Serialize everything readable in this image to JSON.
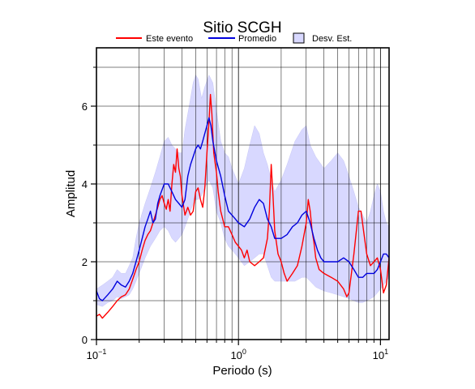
{
  "colors": {
    "event": "#ff0000",
    "mean": "#0000dd",
    "band": "#d8d8ff",
    "band_edge": "#c7c7f5",
    "grid": "#000000"
  },
  "chart_data": {
    "type": "line",
    "title": "Sitio SCGH",
    "xlabel": "Periodo (s)",
    "ylabel": "Amplitud",
    "xscale": "log",
    "xlim": [
      0.1,
      11.5
    ],
    "ylim": [
      0,
      7.5
    ],
    "grid": true,
    "legend_position": "top",
    "x_ticks": [
      {
        "value": 0.1,
        "base": "10",
        "exp": "−1"
      },
      {
        "value": 1,
        "base": "10",
        "exp": "0"
      },
      {
        "value": 10,
        "base": "10",
        "exp": "1"
      }
    ],
    "y_ticks": [
      0,
      2,
      4,
      6
    ],
    "legend": [
      {
        "label": "Este evento",
        "kind": "line",
        "color_key": "event"
      },
      {
        "label": "Promedio",
        "kind": "line",
        "color_key": "mean"
      },
      {
        "label": "Desv. Est.",
        "kind": "patch",
        "color_key": "band"
      }
    ],
    "series": [
      {
        "name": "Este evento",
        "color_key": "event",
        "points": [
          [
            0.1,
            0.6
          ],
          [
            0.105,
            0.65
          ],
          [
            0.11,
            0.55
          ],
          [
            0.12,
            0.7
          ],
          [
            0.13,
            0.85
          ],
          [
            0.14,
            1.0
          ],
          [
            0.15,
            1.1
          ],
          [
            0.16,
            1.15
          ],
          [
            0.17,
            1.3
          ],
          [
            0.18,
            1.55
          ],
          [
            0.19,
            1.8
          ],
          [
            0.2,
            2.0
          ],
          [
            0.21,
            2.3
          ],
          [
            0.22,
            2.55
          ],
          [
            0.23,
            2.7
          ],
          [
            0.24,
            2.8
          ],
          [
            0.25,
            3.0
          ],
          [
            0.26,
            3.2
          ],
          [
            0.27,
            3.4
          ],
          [
            0.28,
            3.6
          ],
          [
            0.29,
            3.7
          ],
          [
            0.3,
            3.5
          ],
          [
            0.31,
            3.35
          ],
          [
            0.32,
            3.6
          ],
          [
            0.33,
            3.3
          ],
          [
            0.34,
            4.0
          ],
          [
            0.35,
            4.5
          ],
          [
            0.36,
            4.3
          ],
          [
            0.37,
            4.9
          ],
          [
            0.38,
            4.4
          ],
          [
            0.39,
            4.2
          ],
          [
            0.4,
            3.7
          ],
          [
            0.42,
            3.2
          ],
          [
            0.44,
            3.4
          ],
          [
            0.46,
            3.2
          ],
          [
            0.48,
            3.3
          ],
          [
            0.5,
            3.8
          ],
          [
            0.52,
            3.9
          ],
          [
            0.54,
            3.6
          ],
          [
            0.56,
            3.4
          ],
          [
            0.58,
            3.9
          ],
          [
            0.6,
            4.8
          ],
          [
            0.62,
            5.6
          ],
          [
            0.635,
            6.3
          ],
          [
            0.65,
            5.8
          ],
          [
            0.67,
            4.8
          ],
          [
            0.7,
            4.3
          ],
          [
            0.72,
            3.8
          ],
          [
            0.75,
            3.3
          ],
          [
            0.8,
            2.9
          ],
          [
            0.85,
            2.9
          ],
          [
            0.9,
            2.7
          ],
          [
            0.95,
            2.5
          ],
          [
            1.0,
            2.4
          ],
          [
            1.05,
            2.3
          ],
          [
            1.1,
            2.1
          ],
          [
            1.15,
            2.3
          ],
          [
            1.2,
            2.0
          ],
          [
            1.3,
            1.9
          ],
          [
            1.4,
            2.0
          ],
          [
            1.5,
            2.1
          ],
          [
            1.6,
            2.6
          ],
          [
            1.65,
            3.3
          ],
          [
            1.7,
            4.5
          ],
          [
            1.75,
            3.7
          ],
          [
            1.8,
            2.8
          ],
          [
            1.9,
            2.2
          ],
          [
            2.0,
            2.0
          ],
          [
            2.1,
            1.7
          ],
          [
            2.2,
            1.5
          ],
          [
            2.4,
            1.7
          ],
          [
            2.6,
            1.9
          ],
          [
            2.8,
            2.4
          ],
          [
            3.0,
            3.0
          ],
          [
            3.1,
            3.6
          ],
          [
            3.2,
            3.3
          ],
          [
            3.3,
            2.8
          ],
          [
            3.4,
            2.5
          ],
          [
            3.5,
            2.1
          ],
          [
            3.7,
            1.8
          ],
          [
            4.0,
            1.7
          ],
          [
            4.5,
            1.6
          ],
          [
            5.0,
            1.5
          ],
          [
            5.5,
            1.3
          ],
          [
            5.8,
            1.1
          ],
          [
            6.0,
            1.2
          ],
          [
            6.5,
            2.2
          ],
          [
            7.0,
            3.3
          ],
          [
            7.3,
            3.3
          ],
          [
            7.6,
            2.8
          ],
          [
            8.0,
            2.2
          ],
          [
            8.5,
            1.9
          ],
          [
            9.0,
            2.0
          ],
          [
            9.5,
            2.1
          ],
          [
            10.0,
            1.8
          ],
          [
            10.5,
            1.2
          ],
          [
            11.0,
            1.4
          ],
          [
            11.5,
            2.1
          ]
        ]
      },
      {
        "name": "Promedio",
        "color_key": "mean",
        "points": [
          [
            0.1,
            1.25
          ],
          [
            0.105,
            1.05
          ],
          [
            0.11,
            1.0
          ],
          [
            0.12,
            1.15
          ],
          [
            0.13,
            1.3
          ],
          [
            0.14,
            1.5
          ],
          [
            0.15,
            1.4
          ],
          [
            0.16,
            1.35
          ],
          [
            0.17,
            1.5
          ],
          [
            0.18,
            1.7
          ],
          [
            0.19,
            2.0
          ],
          [
            0.2,
            2.3
          ],
          [
            0.21,
            2.6
          ],
          [
            0.22,
            2.9
          ],
          [
            0.23,
            3.1
          ],
          [
            0.24,
            3.3
          ],
          [
            0.25,
            3.0
          ],
          [
            0.26,
            3.1
          ],
          [
            0.27,
            3.5
          ],
          [
            0.28,
            3.7
          ],
          [
            0.3,
            4.0
          ],
          [
            0.32,
            4.0
          ],
          [
            0.34,
            3.8
          ],
          [
            0.36,
            3.6
          ],
          [
            0.38,
            3.5
          ],
          [
            0.4,
            3.4
          ],
          [
            0.42,
            3.6
          ],
          [
            0.44,
            4.2
          ],
          [
            0.46,
            4.5
          ],
          [
            0.48,
            4.7
          ],
          [
            0.5,
            4.9
          ],
          [
            0.52,
            5.0
          ],
          [
            0.54,
            4.9
          ],
          [
            0.56,
            5.1
          ],
          [
            0.58,
            5.3
          ],
          [
            0.6,
            5.5
          ],
          [
            0.62,
            5.7
          ],
          [
            0.64,
            5.5
          ],
          [
            0.66,
            5.1
          ],
          [
            0.7,
            4.6
          ],
          [
            0.75,
            4.2
          ],
          [
            0.8,
            3.7
          ],
          [
            0.85,
            3.3
          ],
          [
            0.9,
            3.2
          ],
          [
            0.95,
            3.1
          ],
          [
            1.0,
            3.0
          ],
          [
            1.1,
            2.9
          ],
          [
            1.2,
            3.1
          ],
          [
            1.3,
            3.4
          ],
          [
            1.4,
            3.6
          ],
          [
            1.5,
            3.5
          ],
          [
            1.6,
            3.1
          ],
          [
            1.7,
            2.9
          ],
          [
            1.8,
            2.6
          ],
          [
            2.0,
            2.6
          ],
          [
            2.2,
            2.7
          ],
          [
            2.4,
            2.9
          ],
          [
            2.6,
            3.0
          ],
          [
            2.8,
            3.2
          ],
          [
            3.0,
            3.3
          ],
          [
            3.2,
            3.0
          ],
          [
            3.4,
            2.6
          ],
          [
            3.6,
            2.3
          ],
          [
            3.8,
            2.1
          ],
          [
            4.0,
            2.0
          ],
          [
            4.5,
            2.0
          ],
          [
            5.0,
            2.0
          ],
          [
            5.5,
            2.1
          ],
          [
            6.0,
            2.0
          ],
          [
            6.5,
            1.8
          ],
          [
            7.0,
            1.6
          ],
          [
            7.5,
            1.6
          ],
          [
            8.0,
            1.7
          ],
          [
            8.5,
            1.7
          ],
          [
            9.0,
            1.7
          ],
          [
            9.5,
            1.8
          ],
          [
            10.0,
            2.0
          ],
          [
            10.5,
            2.2
          ],
          [
            11.0,
            2.2
          ],
          [
            11.5,
            2.1
          ]
        ]
      }
    ],
    "band": {
      "name": "Desv. Est.",
      "upper": [
        [
          0.1,
          1.3
        ],
        [
          0.11,
          1.4
        ],
        [
          0.12,
          1.5
        ],
        [
          0.13,
          1.6
        ],
        [
          0.14,
          1.8
        ],
        [
          0.15,
          1.7
        ],
        [
          0.16,
          1.7
        ],
        [
          0.17,
          1.9
        ],
        [
          0.18,
          2.1
        ],
        [
          0.19,
          2.6
        ],
        [
          0.2,
          3.0
        ],
        [
          0.22,
          3.5
        ],
        [
          0.24,
          3.9
        ],
        [
          0.26,
          4.3
        ],
        [
          0.28,
          4.7
        ],
        [
          0.3,
          5.1
        ],
        [
          0.32,
          5.2
        ],
        [
          0.34,
          5.0
        ],
        [
          0.36,
          4.9
        ],
        [
          0.38,
          4.8
        ],
        [
          0.4,
          4.8
        ],
        [
          0.42,
          5.4
        ],
        [
          0.45,
          6.0
        ],
        [
          0.48,
          6.6
        ],
        [
          0.5,
          6.8
        ],
        [
          0.52,
          6.7
        ],
        [
          0.55,
          6.2
        ],
        [
          0.58,
          6.5
        ],
        [
          0.62,
          6.8
        ],
        [
          0.66,
          6.6
        ],
        [
          0.7,
          5.9
        ],
        [
          0.75,
          5.1
        ],
        [
          0.8,
          4.8
        ],
        [
          0.85,
          4.7
        ],
        [
          0.9,
          4.4
        ],
        [
          0.95,
          4.2
        ],
        [
          1.0,
          4.0
        ],
        [
          1.1,
          4.4
        ],
        [
          1.2,
          5.0
        ],
        [
          1.3,
          5.5
        ],
        [
          1.4,
          5.3
        ],
        [
          1.5,
          4.8
        ],
        [
          1.6,
          4.5
        ],
        [
          1.7,
          4.1
        ],
        [
          1.8,
          3.8
        ],
        [
          2.0,
          4.1
        ],
        [
          2.2,
          4.5
        ],
        [
          2.5,
          5.1
        ],
        [
          2.8,
          5.4
        ],
        [
          3.0,
          5.5
        ],
        [
          3.2,
          5.0
        ],
        [
          3.5,
          4.7
        ],
        [
          4.0,
          4.4
        ],
        [
          4.5,
          4.6
        ],
        [
          5.0,
          4.8
        ],
        [
          5.5,
          4.6
        ],
        [
          6.0,
          4.2
        ],
        [
          6.5,
          3.8
        ],
        [
          7.0,
          3.4
        ],
        [
          7.5,
          3.2
        ],
        [
          8.0,
          3.0
        ],
        [
          8.5,
          3.3
        ],
        [
          9.0,
          3.7
        ],
        [
          9.5,
          4.0
        ],
        [
          10.0,
          3.8
        ],
        [
          10.5,
          3.3
        ],
        [
          11.0,
          3.0
        ],
        [
          11.5,
          2.9
        ]
      ],
      "lower": [
        [
          0.1,
          0.9
        ],
        [
          0.11,
          0.85
        ],
        [
          0.12,
          0.95
        ],
        [
          0.13,
          1.0
        ],
        [
          0.14,
          1.1
        ],
        [
          0.15,
          1.05
        ],
        [
          0.16,
          1.1
        ],
        [
          0.17,
          1.15
        ],
        [
          0.18,
          1.3
        ],
        [
          0.19,
          1.5
        ],
        [
          0.2,
          1.7
        ],
        [
          0.22,
          2.1
        ],
        [
          0.24,
          2.4
        ],
        [
          0.26,
          2.6
        ],
        [
          0.28,
          2.8
        ],
        [
          0.3,
          2.9
        ],
        [
          0.32,
          2.8
        ],
        [
          0.34,
          2.6
        ],
        [
          0.36,
          2.5
        ],
        [
          0.38,
          2.6
        ],
        [
          0.4,
          2.7
        ],
        [
          0.42,
          2.9
        ],
        [
          0.45,
          3.2
        ],
        [
          0.48,
          3.5
        ],
        [
          0.5,
          3.6
        ],
        [
          0.52,
          3.6
        ],
        [
          0.55,
          3.7
        ],
        [
          0.58,
          3.9
        ],
        [
          0.62,
          4.1
        ],
        [
          0.66,
          3.9
        ],
        [
          0.7,
          3.3
        ],
        [
          0.75,
          3.0
        ],
        [
          0.8,
          2.6
        ],
        [
          0.85,
          2.4
        ],
        [
          0.9,
          2.3
        ],
        [
          0.95,
          2.2
        ],
        [
          1.0,
          2.1
        ],
        [
          1.1,
          1.9
        ],
        [
          1.2,
          2.0
        ],
        [
          1.3,
          2.1
        ],
        [
          1.4,
          2.2
        ],
        [
          1.5,
          2.2
        ],
        [
          1.6,
          1.9
        ],
        [
          1.7,
          1.6
        ],
        [
          1.8,
          1.5
        ],
        [
          2.0,
          1.5
        ],
        [
          2.2,
          1.5
        ],
        [
          2.5,
          1.5
        ],
        [
          2.8,
          1.6
        ],
        [
          3.0,
          1.6
        ],
        [
          3.2,
          1.5
        ],
        [
          3.5,
          1.35
        ],
        [
          4.0,
          1.25
        ],
        [
          4.5,
          1.2
        ],
        [
          5.0,
          1.15
        ],
        [
          5.5,
          1.1
        ],
        [
          6.0,
          1.05
        ],
        [
          6.5,
          1.0
        ],
        [
          7.0,
          0.95
        ],
        [
          7.5,
          0.95
        ],
        [
          8.0,
          1.0
        ],
        [
          8.5,
          1.05
        ],
        [
          9.0,
          1.1
        ],
        [
          9.5,
          1.2
        ],
        [
          10.0,
          1.3
        ],
        [
          10.5,
          1.4
        ],
        [
          11.0,
          1.5
        ],
        [
          11.5,
          1.6
        ]
      ]
    }
  }
}
